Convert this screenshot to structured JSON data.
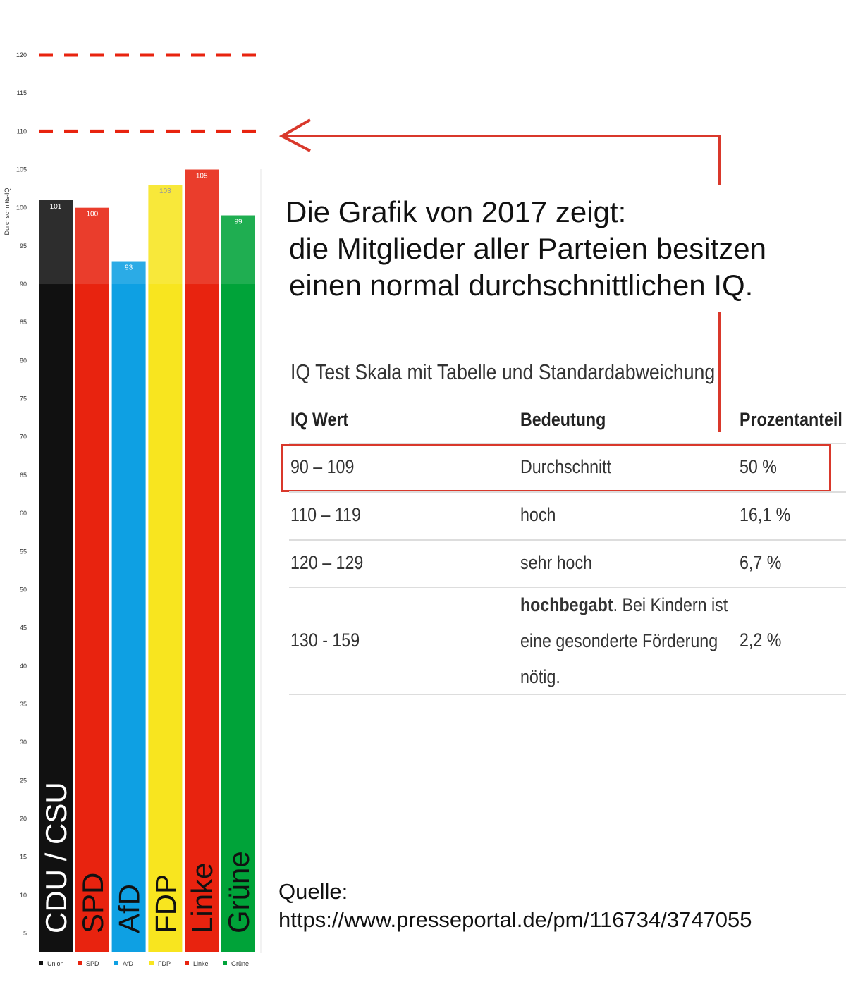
{
  "chart_data": {
    "type": "bar",
    "ylabel": "Durchschnitts-IQ",
    "ylim": [
      5,
      120
    ],
    "yticks": [
      5,
      10,
      15,
      20,
      25,
      30,
      35,
      40,
      45,
      50,
      55,
      60,
      65,
      70,
      75,
      80,
      85,
      90,
      95,
      100,
      105,
      110,
      115,
      120
    ],
    "categories": [
      "CDU / CSU",
      "SPD",
      "AfD",
      "FDP",
      "Linke",
      "Grüne"
    ],
    "values": [
      101,
      100,
      93,
      103,
      105,
      99
    ],
    "value_labels": [
      "101",
      "100",
      "93",
      "103",
      "105",
      "99"
    ],
    "colors": [
      "#111111",
      "#e8230f",
      "#0ea0e3",
      "#f8e51f",
      "#e8230f",
      "#00a339"
    ],
    "legend": [
      "Union",
      "SPD",
      "AfD",
      "FDP",
      "Linke",
      "Grüne"
    ],
    "legend_placement": "bottom",
    "reference_lines": [
      110,
      120
    ]
  },
  "headline": {
    "line1": "Die Grafik von 2017 zeigt:",
    "line2": "die Mitglieder aller Parteien besitzen",
    "line3": "einen normal durchschnittlichen IQ."
  },
  "table": {
    "title": "IQ Test Skala mit Tabelle und Standardabweichung",
    "headers": [
      "IQ Wert",
      "Bedeutung",
      "Prozentanteil"
    ],
    "rows": [
      {
        "range": "90 – 109",
        "meaning": "Durchschnitt",
        "percent": "50 %"
      },
      {
        "range": "110 – 119",
        "meaning": "hoch",
        "percent": "16,1 %"
      },
      {
        "range": "120 – 129",
        "meaning": "sehr hoch",
        "percent": "6,7 %"
      },
      {
        "range": "130 - 159",
        "meaning_bold": "hochbegabt",
        "meaning_rest1": ". Bei Kindern ist",
        "meaning_line2": "eine gesonderte Förderung",
        "meaning_line3": "nötig.",
        "percent": "2,2 %"
      }
    ]
  },
  "source": {
    "label": "Quelle:",
    "url": "https://www.presseportal.de/pm/116734/3747055"
  },
  "colors": {
    "annotation_red": "#d9382b"
  }
}
